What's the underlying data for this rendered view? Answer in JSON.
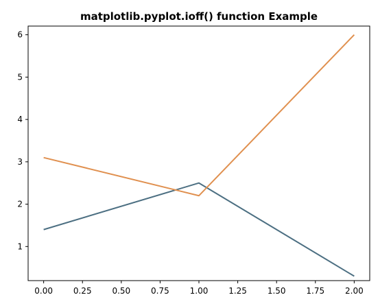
{
  "chart_data": {
    "type": "line",
    "title": "matplotlib.pyplot.ioff() function Example",
    "xlabel": "",
    "ylabel": "",
    "xlim": [
      -0.1,
      2.1
    ],
    "ylim": [
      0.195,
      6.205
    ],
    "x_ticks": [
      0.0,
      0.25,
      0.5,
      0.75,
      1.0,
      1.25,
      1.5,
      1.75,
      2.0
    ],
    "x_tick_labels": [
      "0.00",
      "0.25",
      "0.50",
      "0.75",
      "1.00",
      "1.25",
      "1.50",
      "1.75",
      "2.00"
    ],
    "y_ticks": [
      1,
      2,
      3,
      4,
      5,
      6
    ],
    "y_tick_labels": [
      "1",
      "2",
      "3",
      "4",
      "5",
      "6"
    ],
    "grid": false,
    "series": [
      {
        "x": [
          0,
          1,
          2
        ],
        "values": [
          1.4,
          2.5,
          0.3
        ],
        "color": "#4c6f82"
      },
      {
        "x": [
          0,
          1,
          2
        ],
        "values": [
          3.1,
          2.2,
          6.0
        ],
        "color": "#e0904f"
      }
    ]
  }
}
